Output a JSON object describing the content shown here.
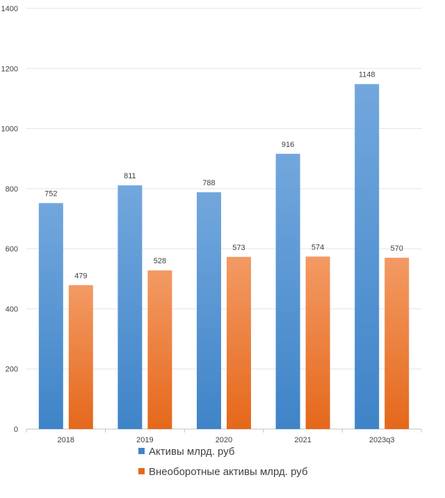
{
  "chart_data": {
    "type": "bar",
    "categories": [
      "2018",
      "2019",
      "2020",
      "2021",
      "2023q3"
    ],
    "series": [
      {
        "name": "Активы млрд. руб",
        "values": [
          752,
          811,
          788,
          916,
          1148
        ],
        "color_top": "#72A7DD",
        "color_bottom": "#3F84C8"
      },
      {
        "name": "Внеоборотные активы млрд. руб",
        "values": [
          479,
          528,
          573,
          574,
          570
        ],
        "color_top": "#F39A64",
        "color_bottom": "#E5681B"
      }
    ],
    "ylim": [
      0,
      1400
    ],
    "yticks": [
      0,
      200,
      400,
      600,
      800,
      1000,
      1200,
      1400
    ],
    "grid": true,
    "legend_position": "bottom",
    "data_labels": true
  }
}
